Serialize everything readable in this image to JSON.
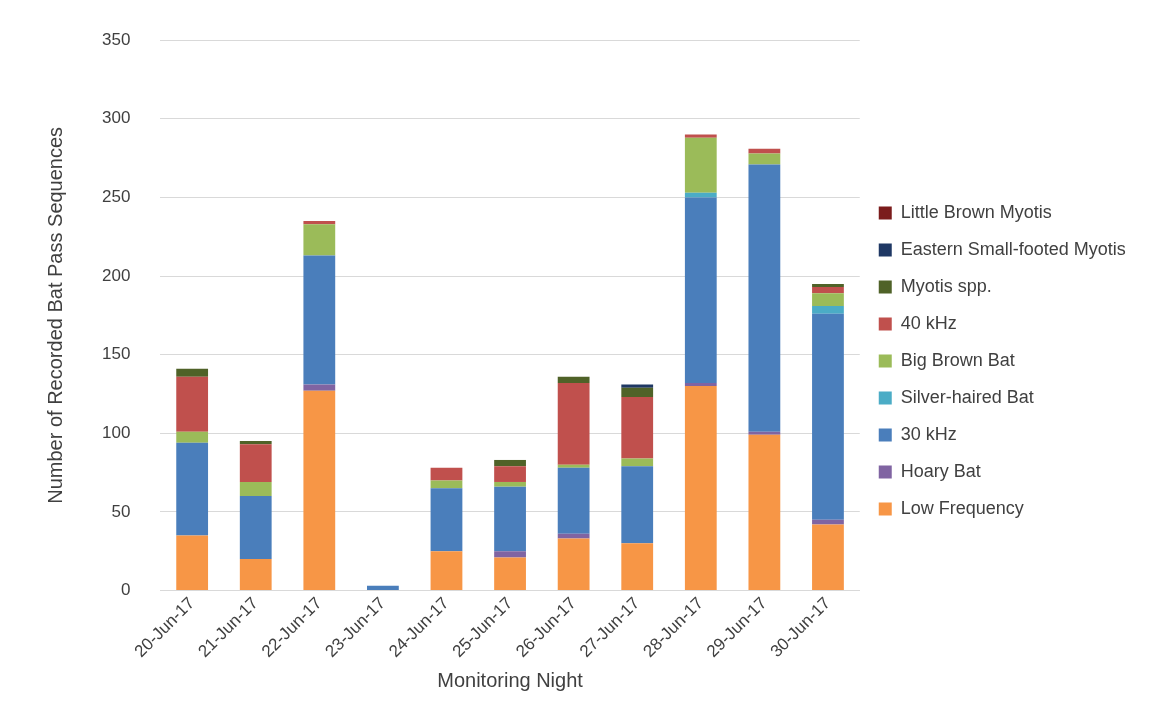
{
  "chart_data": {
    "type": "bar",
    "stacked": true,
    "xlabel": "Monitoring Night",
    "ylabel": "Number of Recorded Bat Pass Sequences",
    "categories": [
      "20-Jun-17",
      "21-Jun-17",
      "22-Jun-17",
      "23-Jun-17",
      "24-Jun-17",
      "25-Jun-17",
      "26-Jun-17",
      "27-Jun-17",
      "28-Jun-17",
      "29-Jun-17",
      "30-Jun-17"
    ],
    "series": [
      {
        "name": "Low Frequency",
        "color": "#f79646",
        "values": [
          35,
          20,
          127,
          0,
          25,
          21,
          33,
          30,
          130,
          99,
          42
        ]
      },
      {
        "name": "Hoary Bat",
        "color": "#8064a2",
        "values": [
          0,
          0,
          4,
          0,
          0,
          4,
          3,
          0,
          2,
          2,
          3
        ]
      },
      {
        "name": "30 kHz",
        "color": "#4a7ebb",
        "values": [
          59,
          40,
          82,
          3,
          40,
          41,
          42,
          49,
          118,
          170,
          131
        ]
      },
      {
        "name": "Silver-haired Bat",
        "color": "#4bacc6",
        "values": [
          0,
          0,
          0,
          0,
          0,
          0,
          0,
          0,
          3,
          0,
          5
        ]
      },
      {
        "name": "Big Brown Bat",
        "color": "#9bbb59",
        "values": [
          7,
          9,
          20,
          0,
          5,
          3,
          2,
          5,
          35,
          7,
          8
        ]
      },
      {
        "name": "40 kHz",
        "color": "#c0504d",
        "values": [
          35,
          24,
          2,
          0,
          8,
          10,
          52,
          39,
          2,
          3,
          4
        ]
      },
      {
        "name": "Myotis spp.",
        "color": "#4f6228",
        "values": [
          5,
          2,
          0,
          0,
          0,
          4,
          4,
          6,
          0,
          0,
          2
        ]
      },
      {
        "name": "Eastern Small-footed Myotis",
        "color": "#1f3864",
        "values": [
          0,
          0,
          0,
          0,
          0,
          0,
          0,
          2,
          0,
          0,
          0
        ]
      },
      {
        "name": "Little Brown Myotis",
        "color": "#7b1c1c",
        "values": [
          0,
          0,
          0,
          0,
          0,
          0,
          0,
          0,
          0,
          0,
          0
        ]
      }
    ],
    "ylim": [
      0,
      350
    ],
    "yticks": [
      0,
      50,
      100,
      150,
      200,
      250,
      300,
      350
    ],
    "grid": "y",
    "legend": "right"
  }
}
